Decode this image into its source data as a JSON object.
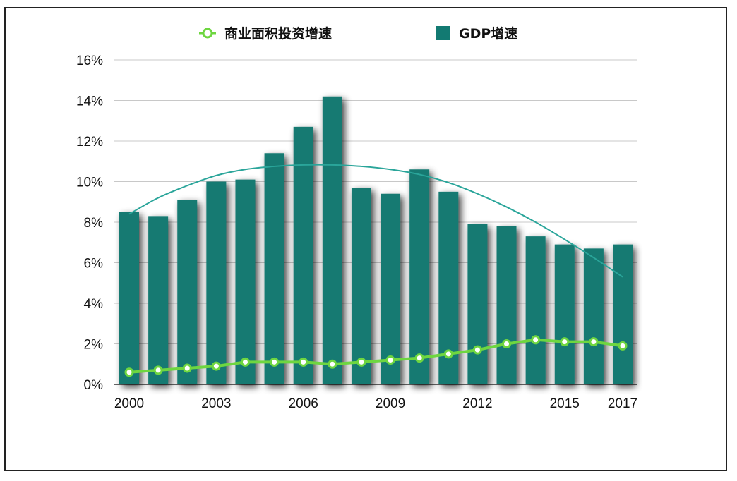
{
  "chart_data": {
    "type": "bar",
    "title": "",
    "xlabel": "",
    "ylabel": "",
    "x": [
      2000,
      2001,
      2002,
      2003,
      2004,
      2005,
      2006,
      2007,
      2008,
      2009,
      2010,
      2011,
      2012,
      2013,
      2014,
      2015,
      2016,
      2017
    ],
    "x_tick_labels": [
      "2000",
      "2003",
      "2006",
      "2009",
      "2012",
      "2015",
      "2017"
    ],
    "x_tick_values": [
      2000,
      2003,
      2006,
      2009,
      2012,
      2015,
      2017
    ],
    "y_tick_labels": [
      "0%",
      "2%",
      "4%",
      "6%",
      "8%",
      "10%",
      "12%",
      "14%",
      "16%"
    ],
    "ylim": [
      0,
      16
    ],
    "grid": "horizontal",
    "legend": {
      "placement": "top-center"
    },
    "series": [
      {
        "name": "GDP增速",
        "type": "bar",
        "color": "#127a72",
        "values": [
          8.5,
          8.3,
          9.1,
          10.0,
          10.1,
          11.4,
          12.7,
          14.2,
          9.7,
          9.4,
          10.6,
          9.5,
          7.9,
          7.8,
          7.3,
          6.9,
          6.7,
          6.9
        ]
      },
      {
        "name": "商业面积投资增速",
        "type": "line",
        "color": "#6ed640",
        "values": [
          0.6,
          0.7,
          0.8,
          0.9,
          1.1,
          1.1,
          1.1,
          1.0,
          1.1,
          1.2,
          1.3,
          1.5,
          1.7,
          2.0,
          2.2,
          2.1,
          2.1,
          1.9
        ]
      }
    ],
    "trendline": {
      "kind": "polynomial",
      "of_series": "GDP增速",
      "color": "#2aa59a",
      "x": [
        2000,
        2001,
        2002,
        2003,
        2004,
        2005,
        2006,
        2007,
        2008,
        2009,
        2010,
        2011,
        2012,
        2013,
        2014,
        2015,
        2016,
        2017
      ],
      "values": [
        8.4,
        9.2,
        9.8,
        10.3,
        10.6,
        10.75,
        10.82,
        10.82,
        10.75,
        10.6,
        10.35,
        9.95,
        9.4,
        8.75,
        8.0,
        7.15,
        6.25,
        5.3
      ]
    }
  }
}
